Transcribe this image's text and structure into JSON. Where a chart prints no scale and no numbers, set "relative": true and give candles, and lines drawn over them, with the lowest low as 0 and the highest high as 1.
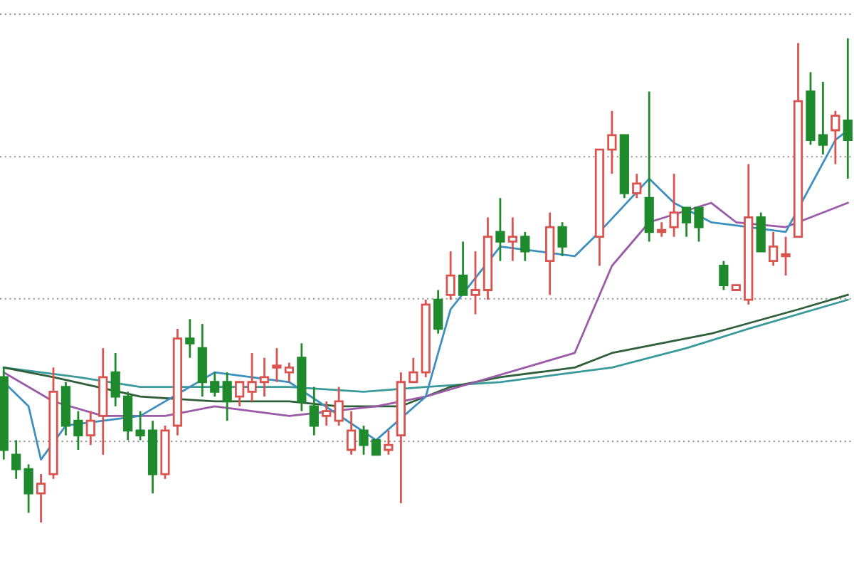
{
  "chart_data": {
    "type": "candlestick",
    "relative": true,
    "grid": "y",
    "categories": [
      null,
      null,
      null,
      null,
      null,
      null,
      null,
      null,
      null,
      null,
      null,
      null,
      null,
      null,
      null,
      null,
      null,
      null,
      null,
      null,
      null,
      null,
      null,
      null,
      null,
      null,
      null,
      null,
      null,
      null,
      null,
      null,
      null,
      null,
      null,
      null,
      null,
      null,
      null,
      null,
      null,
      null,
      null,
      null,
      null,
      null,
      null,
      null,
      null,
      null,
      null,
      null,
      null,
      null,
      null,
      null,
      null,
      null,
      null,
      null,
      null,
      null,
      null,
      null,
      null,
      null,
      null,
      null,
      null
    ],
    "ohlc": [
      [
        0.3,
        0.32,
        0.13,
        0.15
      ],
      [
        0.14,
        0.17,
        0.09,
        0.11
      ],
      [
        0.11,
        0.12,
        0.02,
        0.06
      ],
      [
        0.06,
        0.1,
        0.0,
        0.08
      ],
      [
        0.1,
        0.32,
        0.09,
        0.27
      ],
      [
        0.28,
        0.29,
        0.18,
        0.2
      ],
      [
        0.21,
        0.23,
        0.15,
        0.18
      ],
      [
        0.18,
        0.23,
        0.16,
        0.21
      ],
      [
        0.22,
        0.36,
        0.14,
        0.3
      ],
      [
        0.31,
        0.35,
        0.24,
        0.26
      ],
      [
        0.26,
        0.27,
        0.17,
        0.19
      ],
      [
        0.19,
        0.23,
        0.17,
        0.18
      ],
      [
        0.19,
        0.21,
        0.06,
        0.1
      ],
      [
        0.1,
        0.2,
        0.09,
        0.19
      ],
      [
        0.2,
        0.4,
        0.18,
        0.38
      ],
      [
        0.38,
        0.42,
        0.34,
        0.37
      ],
      [
        0.36,
        0.41,
        0.26,
        0.29
      ],
      [
        0.29,
        0.31,
        0.26,
        0.27
      ],
      [
        0.29,
        0.31,
        0.21,
        0.25
      ],
      [
        0.26,
        0.29,
        0.24,
        0.29
      ],
      [
        0.27,
        0.35,
        0.25,
        0.29
      ],
      [
        0.29,
        0.34,
        0.26,
        0.3
      ],
      [
        0.32,
        0.36,
        0.29,
        0.32
      ],
      [
        0.31,
        0.33,
        0.29,
        0.32
      ],
      [
        0.34,
        0.37,
        0.23,
        0.25
      ],
      [
        0.24,
        0.28,
        0.18,
        0.2
      ],
      [
        0.22,
        0.25,
        0.2,
        0.23
      ],
      [
        0.21,
        0.28,
        0.2,
        0.25
      ],
      [
        0.15,
        0.23,
        0.14,
        0.19
      ],
      [
        0.19,
        0.2,
        0.14,
        0.16
      ],
      [
        0.17,
        0.17,
        0.14,
        0.14
      ],
      [
        0.15,
        0.19,
        0.14,
        0.16
      ],
      [
        0.18,
        0.31,
        0.04,
        0.29
      ],
      [
        0.29,
        0.34,
        0.29,
        0.31
      ],
      [
        0.31,
        0.46,
        0.3,
        0.45
      ],
      [
        0.46,
        0.48,
        0.39,
        0.4
      ],
      [
        0.47,
        0.56,
        0.46,
        0.51
      ],
      [
        0.51,
        0.58,
        0.47,
        0.47
      ],
      [
        0.47,
        0.56,
        0.43,
        0.48
      ],
      [
        0.48,
        0.63,
        0.46,
        0.59
      ],
      [
        0.6,
        0.67,
        0.54,
        0.58
      ],
      [
        0.58,
        0.63,
        0.54,
        0.59
      ],
      [
        0.59,
        0.6,
        0.54,
        0.56
      ],
      null,
      [
        0.54,
        0.64,
        0.47,
        0.61
      ],
      [
        0.61,
        0.62,
        0.55,
        0.57
      ],
      null,
      null,
      [
        0.59,
        0.77,
        0.53,
        0.77
      ],
      [
        0.77,
        0.85,
        0.72,
        0.8
      ],
      [
        0.8,
        0.8,
        0.67,
        0.68
      ],
      [
        0.68,
        0.72,
        0.67,
        0.7
      ],
      [
        0.67,
        0.89,
        0.58,
        0.6
      ],
      [
        0.6,
        0.62,
        0.59,
        0.6
      ],
      [
        0.61,
        0.72,
        0.59,
        0.64
      ],
      [
        0.65,
        0.65,
        0.59,
        0.62
      ],
      [
        0.65,
        0.65,
        0.58,
        0.61
      ],
      null,
      [
        0.53,
        0.54,
        0.48,
        0.49
      ],
      [
        0.48,
        0.49,
        0.48,
        0.49
      ],
      [
        0.46,
        0.74,
        0.45,
        0.63
      ],
      [
        0.63,
        0.64,
        0.56,
        0.56
      ],
      [
        0.54,
        0.6,
        0.53,
        0.57
      ],
      [
        0.55,
        0.59,
        0.51,
        0.55
      ],
      [
        0.59,
        0.99,
        0.59,
        0.87
      ],
      [
        0.89,
        0.93,
        0.78,
        0.79
      ],
      [
        0.8,
        0.91,
        0.76,
        0.78
      ],
      [
        0.81,
        0.85,
        0.74,
        0.84
      ],
      [
        0.83,
        1.0,
        0.71,
        0.79
      ]
    ],
    "series": [
      {
        "type": "line",
        "color": "#3a9a9a",
        "values": [
          0.32,
          null,
          null,
          null,
          null,
          null,
          0.3,
          null,
          null,
          null,
          null,
          0.28,
          null,
          null,
          null,
          null,
          null,
          0.28,
          null,
          null,
          null,
          null,
          null,
          0.28,
          null,
          null,
          null,
          null,
          null,
          0.27,
          null,
          null,
          null,
          null,
          0.28,
          null,
          null,
          null,
          null,
          null,
          0.29,
          null,
          null,
          null,
          null,
          null,
          0.31,
          null,
          null,
          0.32,
          null,
          null,
          null,
          null,
          null,
          0.36,
          null,
          null,
          null,
          null,
          0.4,
          null,
          null,
          null,
          null,
          null,
          null,
          null,
          0.46
        ]
      },
      {
        "type": "line",
        "color": "#2f5f3a",
        "values": [
          0.32,
          null,
          null,
          null,
          0.3,
          null,
          null,
          null,
          null,
          null,
          null,
          0.26,
          null,
          null,
          null,
          null,
          null,
          0.25,
          null,
          null,
          null,
          null,
          null,
          0.25,
          null,
          null,
          null,
          0.24,
          null,
          null,
          null,
          null,
          0.24,
          null,
          null,
          null,
          0.28,
          null,
          null,
          null,
          0.3,
          null,
          null,
          null,
          null,
          null,
          0.32,
          null,
          null,
          0.35,
          null,
          null,
          null,
          null,
          null,
          null,
          null,
          0.39,
          null,
          null,
          null,
          null,
          null,
          null,
          0.44,
          null,
          null,
          null,
          0.47
        ]
      },
      {
        "type": "line",
        "color": "#9a5aa8",
        "values": [
          0.31,
          null,
          null,
          null,
          0.25,
          null,
          null,
          null,
          0.22,
          null,
          null,
          null,
          null,
          0.22,
          null,
          null,
          null,
          0.24,
          null,
          null,
          null,
          null,
          null,
          0.22,
          null,
          null,
          null,
          null,
          null,
          null,
          0.24,
          null,
          null,
          null,
          0.26,
          null,
          null,
          null,
          0.29,
          null,
          null,
          null,
          0.32,
          null,
          null,
          null,
          0.35,
          null,
          null,
          0.53,
          null,
          null,
          0.62,
          null,
          null,
          null,
          null,
          0.66,
          null,
          0.62,
          null,
          null,
          null,
          0.61,
          null,
          null,
          null,
          null,
          0.66
        ]
      },
      {
        "type": "line",
        "color": "#3d8fc0",
        "values": [
          0.29,
          null,
          0.24,
          0.13,
          null,
          0.2,
          null,
          null,
          null,
          null,
          null,
          0.22,
          null,
          null,
          null,
          null,
          null,
          0.31,
          null,
          null,
          null,
          null,
          null,
          0.29,
          null,
          null,
          null,
          null,
          null,
          null,
          0.17,
          null,
          null,
          null,
          0.26,
          null,
          0.44,
          null,
          null,
          null,
          0.57,
          null,
          null,
          null,
          null,
          null,
          0.55,
          null,
          0.6,
          null,
          null,
          null,
          0.71,
          null,
          0.66,
          null,
          null,
          0.62,
          null,
          null,
          null,
          null,
          null,
          0.6,
          null,
          null,
          null,
          0.79,
          0.81
        ]
      }
    ]
  }
}
